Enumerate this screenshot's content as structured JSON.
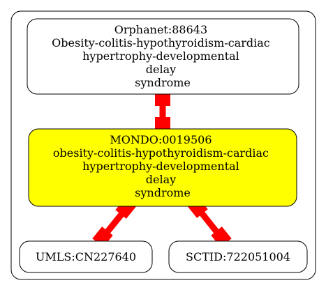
{
  "colors": {
    "highlight_fill": "#ffff00",
    "node_fill": "#ffffff",
    "edge_color": "#ff0000",
    "stroke": "#000000",
    "background": "#ffffff"
  },
  "nodes": {
    "orphanet": {
      "lines": [
        "Orphanet:88643",
        "Obesity-colitis-hypothyroidism-cardiac",
        "hypertrophy-developmental",
        "delay",
        "syndrome"
      ]
    },
    "mondo": {
      "lines": [
        "MONDO:0019506",
        "obesity-colitis-hypothyroidism-cardiac",
        "hypertrophy-developmental",
        "delay",
        "syndrome"
      ]
    },
    "umls": {
      "lines": [
        "UMLS:CN227640"
      ]
    },
    "sctid": {
      "lines": [
        "SCTID:722051004"
      ]
    }
  },
  "edges": [
    {
      "from": "orphanet",
      "to": "mondo"
    },
    {
      "from": "mondo",
      "to": "umls"
    },
    {
      "from": "mondo",
      "to": "sctid"
    }
  ]
}
